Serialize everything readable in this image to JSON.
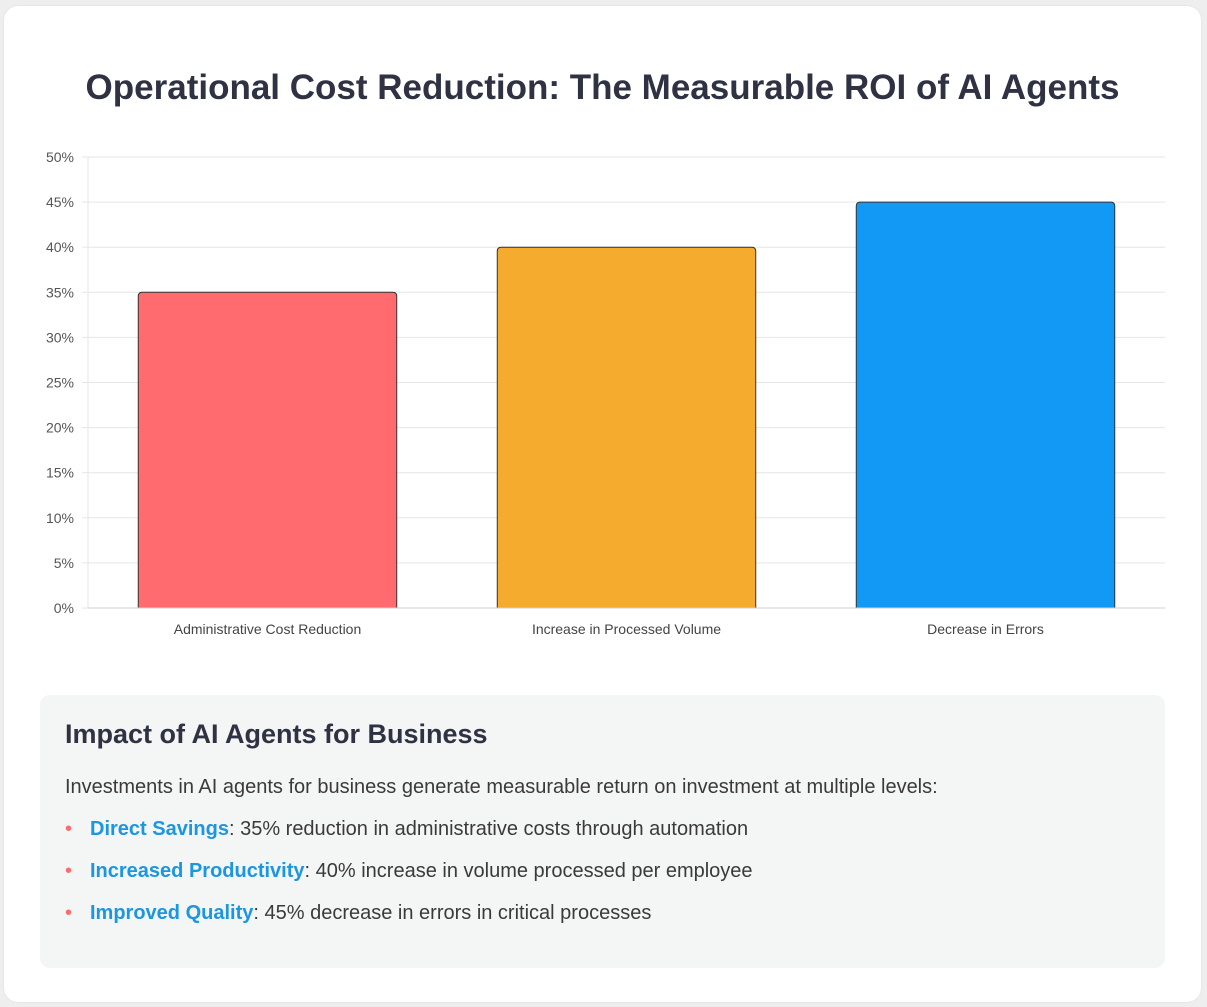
{
  "title": "Operational Cost Reduction: The Measurable ROI of AI Agents",
  "chart_data": {
    "type": "bar",
    "categories": [
      "Administrative Cost Reduction",
      "Increase in Processed Volume",
      "Decrease in Errors"
    ],
    "values": [
      35,
      40,
      45
    ],
    "colors": [
      "#ff6b6f",
      "#f4ab2e",
      "#1298f5"
    ],
    "ylim": [
      0,
      50
    ],
    "yticks": [
      0,
      5,
      10,
      15,
      20,
      25,
      30,
      35,
      40,
      45,
      50
    ],
    "ytick_labels": [
      "0%",
      "5%",
      "10%",
      "15%",
      "20%",
      "25%",
      "30%",
      "35%",
      "40%",
      "45%",
      "50%"
    ],
    "grid": true,
    "legend": "none"
  },
  "info": {
    "heading": "Impact of AI Agents for Business",
    "intro": "Investments in AI agents for business generate measurable return on investment at multiple levels:",
    "bullet_symbol": "•",
    "items": [
      {
        "highlight": "Direct Savings",
        "text": ": 35% reduction in administrative costs through automation"
      },
      {
        "highlight": "Increased Productivity",
        "text": ": 40% increase in volume processed per employee"
      },
      {
        "highlight": "Improved Quality",
        "text": ": 45% decrease in errors in critical processes"
      }
    ]
  }
}
